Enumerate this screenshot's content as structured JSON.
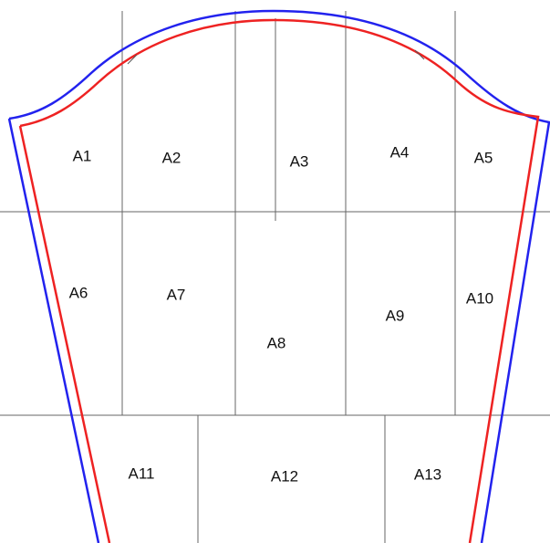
{
  "tiles": [
    "A1",
    "A2",
    "A3",
    "A4",
    "A5",
    "A6",
    "A7",
    "A8",
    "A9",
    "A10",
    "A11",
    "A12",
    "A13"
  ]
}
